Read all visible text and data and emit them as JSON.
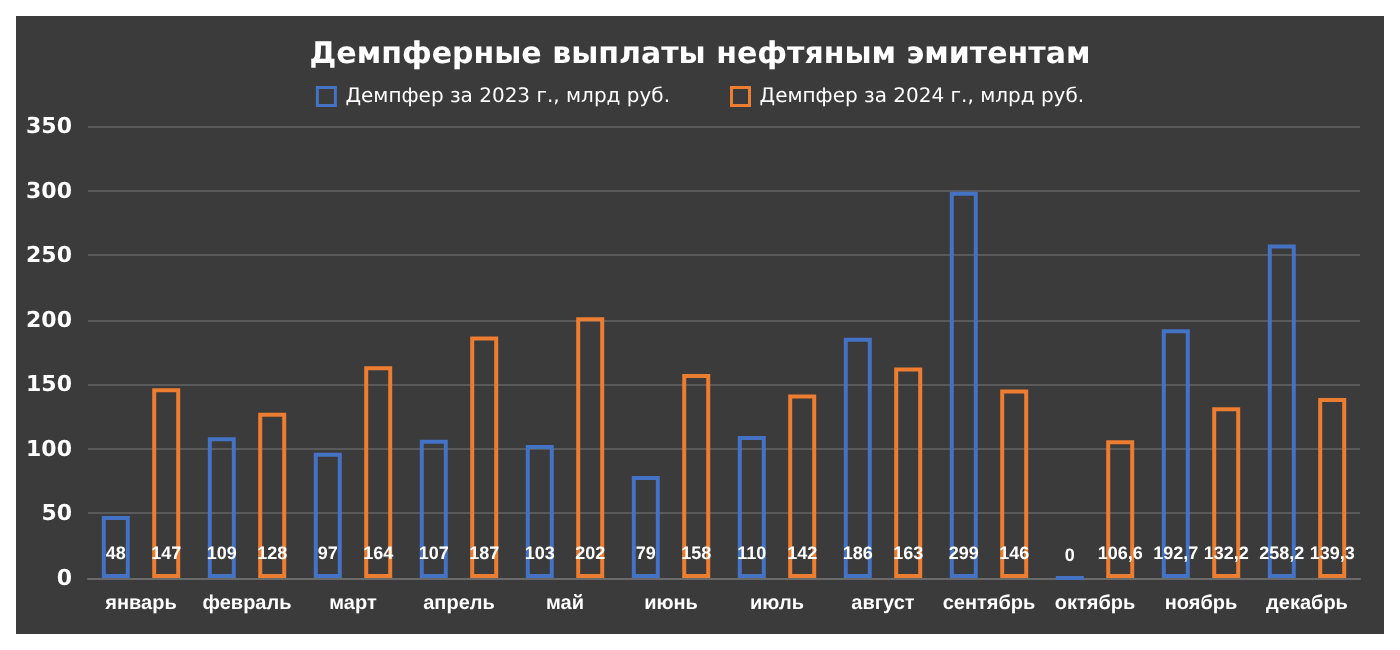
{
  "chart_data": {
    "type": "bar",
    "title": "Демпферные выплаты нефтяным эмитентам",
    "categories": [
      "январь",
      "февраль",
      "март",
      "апрель",
      "май",
      "июнь",
      "июль",
      "август",
      "сентябрь",
      "октябрь",
      "ноябрь",
      "декабрь"
    ],
    "series": [
      {
        "name": "Демпфер за 2023 г., млрд руб.",
        "color": "#4472c4",
        "values": [
          48,
          109,
          97,
          107,
          103,
          79,
          110,
          186,
          299,
          0,
          192.7,
          258.2
        ],
        "value_labels": [
          "48",
          "109",
          "97",
          "107",
          "103",
          "79",
          "110",
          "186",
          "299",
          "0",
          "192,7",
          "258,2"
        ]
      },
      {
        "name": "Демпфер за 2024 г., млрд руб.",
        "color": "#ed7d31",
        "values": [
          147,
          128,
          164,
          187,
          202,
          158,
          142,
          163,
          146,
          106.6,
          132.2,
          139.3
        ],
        "value_labels": [
          "147",
          "128",
          "164",
          "187",
          "202",
          "158",
          "142",
          "163",
          "146",
          "106,6",
          "132,2",
          "139,3"
        ]
      }
    ],
    "ylim": [
      0,
      350
    ],
    "yticks": [
      0,
      50,
      100,
      150,
      200,
      250,
      300,
      350
    ],
    "grid": "y",
    "legend": "top"
  }
}
